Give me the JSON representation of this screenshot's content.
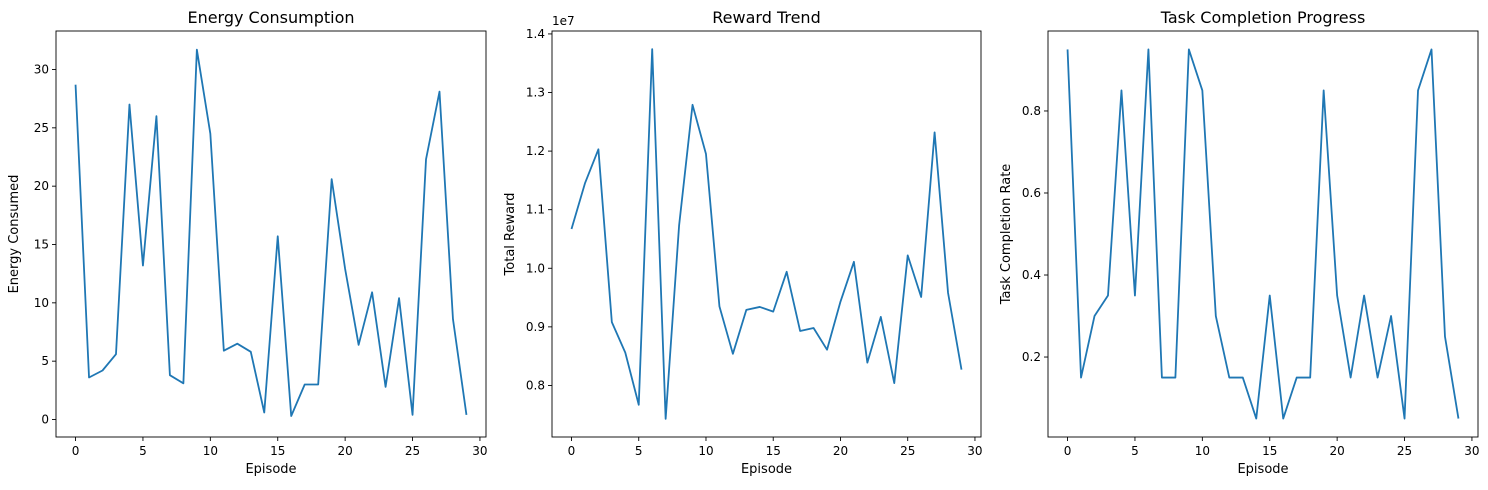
{
  "chart_data": [
    {
      "type": "line",
      "title": "Energy Consumption",
      "xlabel": "Episode",
      "ylabel": "Energy Consumed",
      "xlim": [
        -1.45,
        30.45
      ],
      "ylim": [
        -1.5,
        33.3
      ],
      "xticks": [
        0,
        5,
        10,
        15,
        20,
        25,
        30
      ],
      "yticks": [
        0,
        5,
        10,
        15,
        20,
        25,
        30
      ],
      "tick_labels_x": [
        "0",
        "5",
        "10",
        "15",
        "20",
        "25",
        "30"
      ],
      "tick_labels_y": [
        "0",
        "5",
        "10",
        "15",
        "20",
        "25",
        "30"
      ],
      "offset_text": "",
      "color": "#1f77b4",
      "x": [
        0,
        1,
        2,
        3,
        4,
        5,
        6,
        7,
        8,
        9,
        10,
        11,
        12,
        13,
        14,
        15,
        16,
        17,
        18,
        19,
        20,
        21,
        22,
        23,
        24,
        25,
        26,
        27,
        28,
        29
      ],
      "values": [
        28.7,
        3.6,
        4.2,
        5.6,
        27.0,
        13.2,
        26.0,
        3.8,
        3.1,
        31.7,
        24.5,
        5.9,
        6.5,
        5.8,
        0.6,
        15.7,
        0.3,
        3.0,
        3.0,
        20.6,
        12.9,
        6.4,
        10.9,
        2.8,
        10.4,
        0.4,
        22.3,
        28.1,
        8.6,
        0.4
      ]
    },
    {
      "type": "line",
      "title": "Reward Trend",
      "xlabel": "Episode",
      "ylabel": "Total Reward",
      "xlim": [
        -1.45,
        30.45
      ],
      "ylim": [
        7120000.0,
        14050000.0
      ],
      "xticks": [
        0,
        5,
        10,
        15,
        20,
        25,
        30
      ],
      "yticks": [
        8000000.0,
        9000000.0,
        10000000.0,
        11000000.0,
        12000000.0,
        13000000.0,
        14000000.0
      ],
      "tick_labels_x": [
        "0",
        "5",
        "10",
        "15",
        "20",
        "25",
        "30"
      ],
      "tick_labels_y": [
        "0.8",
        "0.9",
        "1.0",
        "1.1",
        "1.2",
        "1.3",
        "1.4"
      ],
      "offset_text": "1e7",
      "color": "#1f77b4",
      "x": [
        0,
        1,
        2,
        3,
        4,
        5,
        6,
        7,
        8,
        9,
        10,
        11,
        12,
        13,
        14,
        15,
        16,
        17,
        18,
        19,
        20,
        21,
        22,
        23,
        24,
        25,
        26,
        27,
        28,
        29
      ],
      "values": [
        10670000,
        11450000,
        12030000,
        9080000,
        8560000,
        7670000,
        13740000,
        7430000,
        10730000,
        12790000,
        11950000,
        9350000,
        8540000,
        9290000,
        9340000,
        9260000,
        9940000,
        8930000,
        8980000,
        8610000,
        9430000,
        10110000,
        8390000,
        9170000,
        8040000,
        10220000,
        9510000,
        12320000,
        9580000,
        8270000
      ]
    },
    {
      "type": "line",
      "title": "Task Completion Progress",
      "xlabel": "Episode",
      "ylabel": "Task Completion Rate",
      "xlim": [
        -1.45,
        30.45
      ],
      "ylim": [
        0.005,
        0.995
      ],
      "xticks": [
        0,
        5,
        10,
        15,
        20,
        25,
        30
      ],
      "yticks": [
        0.2,
        0.4,
        0.6,
        0.8
      ],
      "tick_labels_x": [
        "0",
        "5",
        "10",
        "15",
        "20",
        "25",
        "30"
      ],
      "tick_labels_y": [
        "0.2",
        "0.4",
        "0.6",
        "0.8"
      ],
      "offset_text": "",
      "color": "#1f77b4",
      "x": [
        0,
        1,
        2,
        3,
        4,
        5,
        6,
        7,
        8,
        9,
        10,
        11,
        12,
        13,
        14,
        15,
        16,
        17,
        18,
        19,
        20,
        21,
        22,
        23,
        24,
        25,
        26,
        27,
        28,
        29
      ],
      "values": [
        0.95,
        0.15,
        0.3,
        0.35,
        0.85,
        0.35,
        0.95,
        0.15,
        0.15,
        0.95,
        0.85,
        0.3,
        0.15,
        0.15,
        0.05,
        0.35,
        0.05,
        0.15,
        0.15,
        0.85,
        0.35,
        0.15,
        0.35,
        0.15,
        0.3,
        0.05,
        0.85,
        0.95,
        0.25,
        0.05
      ]
    }
  ]
}
